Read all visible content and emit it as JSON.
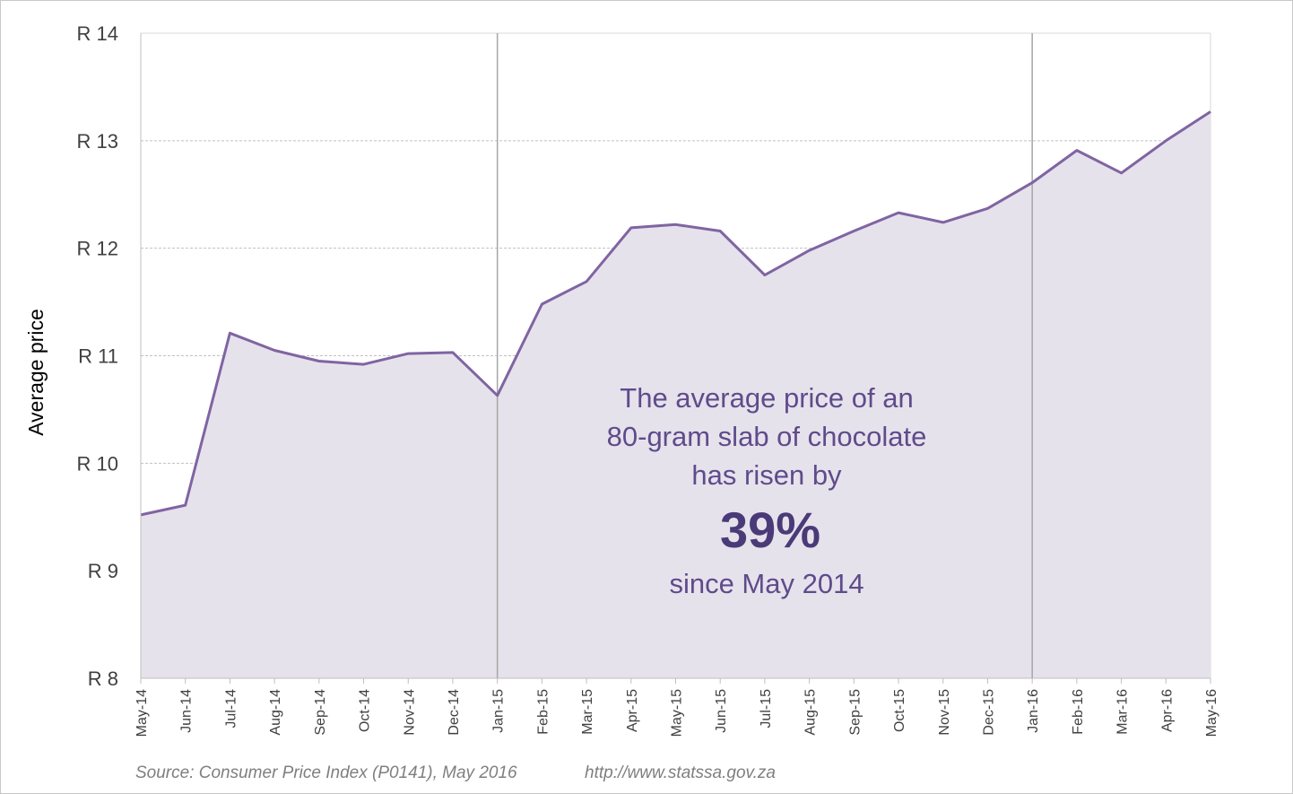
{
  "chart_data": {
    "type": "area",
    "title": "",
    "ylabel": "Average price",
    "xlabel": "",
    "ylim": [
      8,
      14
    ],
    "yticks": [
      {
        "value": 8,
        "label": "R 8"
      },
      {
        "value": 9,
        "label": "R 9"
      },
      {
        "value": 10,
        "label": "R 10"
      },
      {
        "value": 11,
        "label": "R 11"
      },
      {
        "value": 12,
        "label": "R 12"
      },
      {
        "value": 13,
        "label": "R 13"
      },
      {
        "value": 14,
        "label": "R 14"
      }
    ],
    "categories": [
      "May-14",
      "Jun-14",
      "Jul-14",
      "Aug-14",
      "Sep-14",
      "Oct-14",
      "Nov-14",
      "Dec-14",
      "Jan-15",
      "Feb-15",
      "Mar-15",
      "Apr-15",
      "May-15",
      "Jun-15",
      "Jul-15",
      "Aug-15",
      "Sep-15",
      "Oct-15",
      "Nov-15",
      "Dec-15",
      "Jan-16",
      "Feb-16",
      "Mar-16",
      "Apr-16",
      "May-16"
    ],
    "series": [
      {
        "name": "Average price of an 80-gram slab of chocolate",
        "values": [
          9.52,
          9.61,
          11.21,
          11.05,
          10.95,
          10.92,
          11.02,
          11.03,
          10.63,
          11.48,
          11.69,
          12.19,
          12.22,
          12.16,
          11.75,
          11.98,
          12.16,
          12.33,
          12.24,
          12.37,
          12.61,
          12.91,
          12.7,
          13.0,
          13.27
        ]
      }
    ],
    "year_dividers": [
      "Jan-15",
      "Jan-16"
    ],
    "grid": true,
    "colors": {
      "line": "#8064a2",
      "area": "#e6e2ec",
      "text": "#5f4b8b",
      "big_text": "#4b3a78",
      "grid": "#c0c0c0",
      "divider": "#a6a6a6"
    },
    "annotation": {
      "lines": [
        "The average price of an",
        "80-gram slab of chocolate",
        "has risen by"
      ],
      "highlight": "39%",
      "after": "since May 2014"
    }
  },
  "footer": {
    "source": "Source: Consumer Price Index (P0141), May 2016",
    "url": "http://www.statssa.gov.za"
  }
}
